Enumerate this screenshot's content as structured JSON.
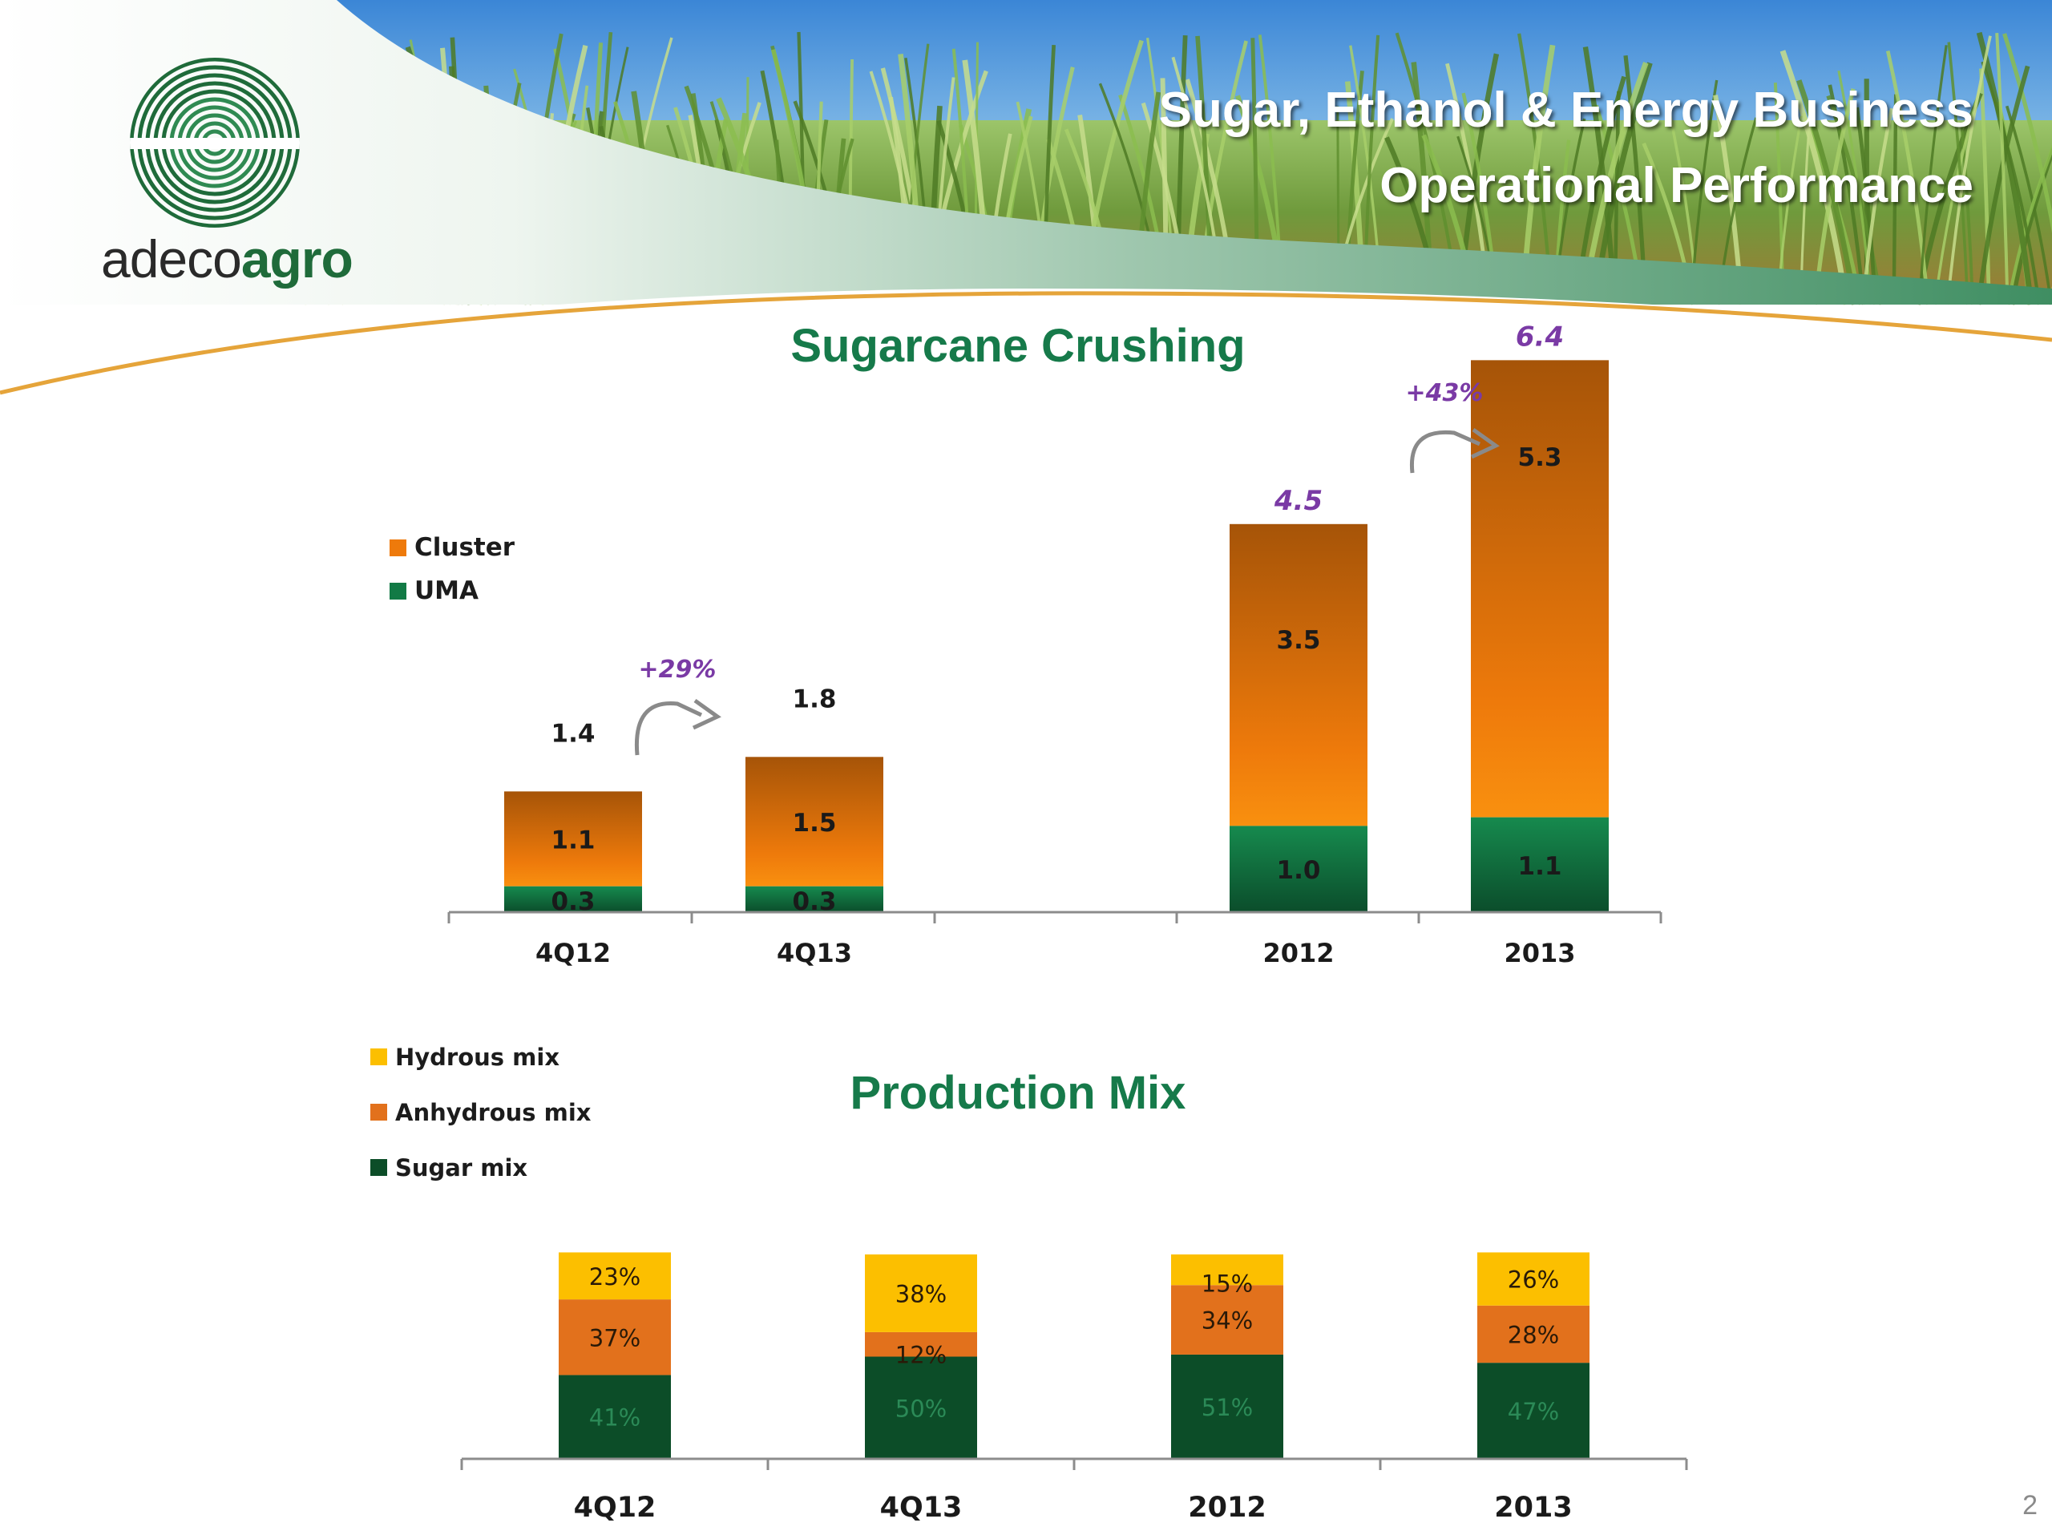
{
  "slide": {
    "title_line1": "Sugar, Ethanol & Energy Business",
    "title_line2": "Operational Performance",
    "brand_light": "adeco",
    "brand_bold": "agro",
    "page_number": "2"
  },
  "colors": {
    "cluster": "#ee7a0b",
    "cluster_dark": "#a65408",
    "uma": "#127a45",
    "uma_dark": "#0b4d2b",
    "hydrous": "#fcbf00",
    "anhydrous": "#e2711c",
    "sugar": "#0c4d28",
    "growth_label": "#7a3aa5"
  },
  "chart_data": [
    {
      "type": "bar",
      "stacked": true,
      "title": "Sugarcane Crushing",
      "categories": [
        "4Q12",
        "4Q13",
        "2012",
        "2013"
      ],
      "series": [
        {
          "name": "UMA",
          "values": [
            0.3,
            0.3,
            1.0,
            1.1
          ],
          "labels": [
            "0.3",
            "0.3",
            "1.0",
            "1.1"
          ]
        },
        {
          "name": "Cluster",
          "values": [
            1.1,
            1.5,
            3.5,
            5.3
          ],
          "labels": [
            "1.1",
            "1.5",
            "3.5",
            "5.3"
          ]
        }
      ],
      "totals": [
        "1.4",
        "1.8",
        "4.5",
        "6.4"
      ],
      "growth": [
        {
          "from": "4Q12",
          "to": "4Q13",
          "label": "+29%"
        },
        {
          "from": "2012",
          "to": "2013",
          "label": "+43%"
        }
      ],
      "legend": [
        "Cluster",
        "UMA"
      ],
      "legend_position": "left",
      "ylim": [
        0,
        6.8
      ],
      "xlabel": "",
      "ylabel": ""
    },
    {
      "type": "bar",
      "stacked": true,
      "title": "Production Mix",
      "categories": [
        "4Q12",
        "4Q13",
        "2012",
        "2013"
      ],
      "series": [
        {
          "name": "Sugar mix",
          "values": [
            41,
            50,
            51,
            47
          ],
          "labels": [
            "41%",
            "50%",
            "51%",
            "47%"
          ]
        },
        {
          "name": "Anhydrous mix",
          "values": [
            37,
            12,
            34,
            28
          ],
          "labels": [
            "37%",
            "12%",
            "34%",
            "28%"
          ]
        },
        {
          "name": "Hydrous mix",
          "values": [
            23,
            38,
            15,
            26
          ],
          "labels": [
            "23%",
            "38%",
            "15%",
            "26%"
          ]
        }
      ],
      "legend": [
        "Hydrous mix",
        "Anhydrous mix",
        "Sugar mix"
      ],
      "legend_position": "top-left",
      "ylim": [
        0,
        100
      ],
      "xlabel": "",
      "ylabel": ""
    }
  ]
}
